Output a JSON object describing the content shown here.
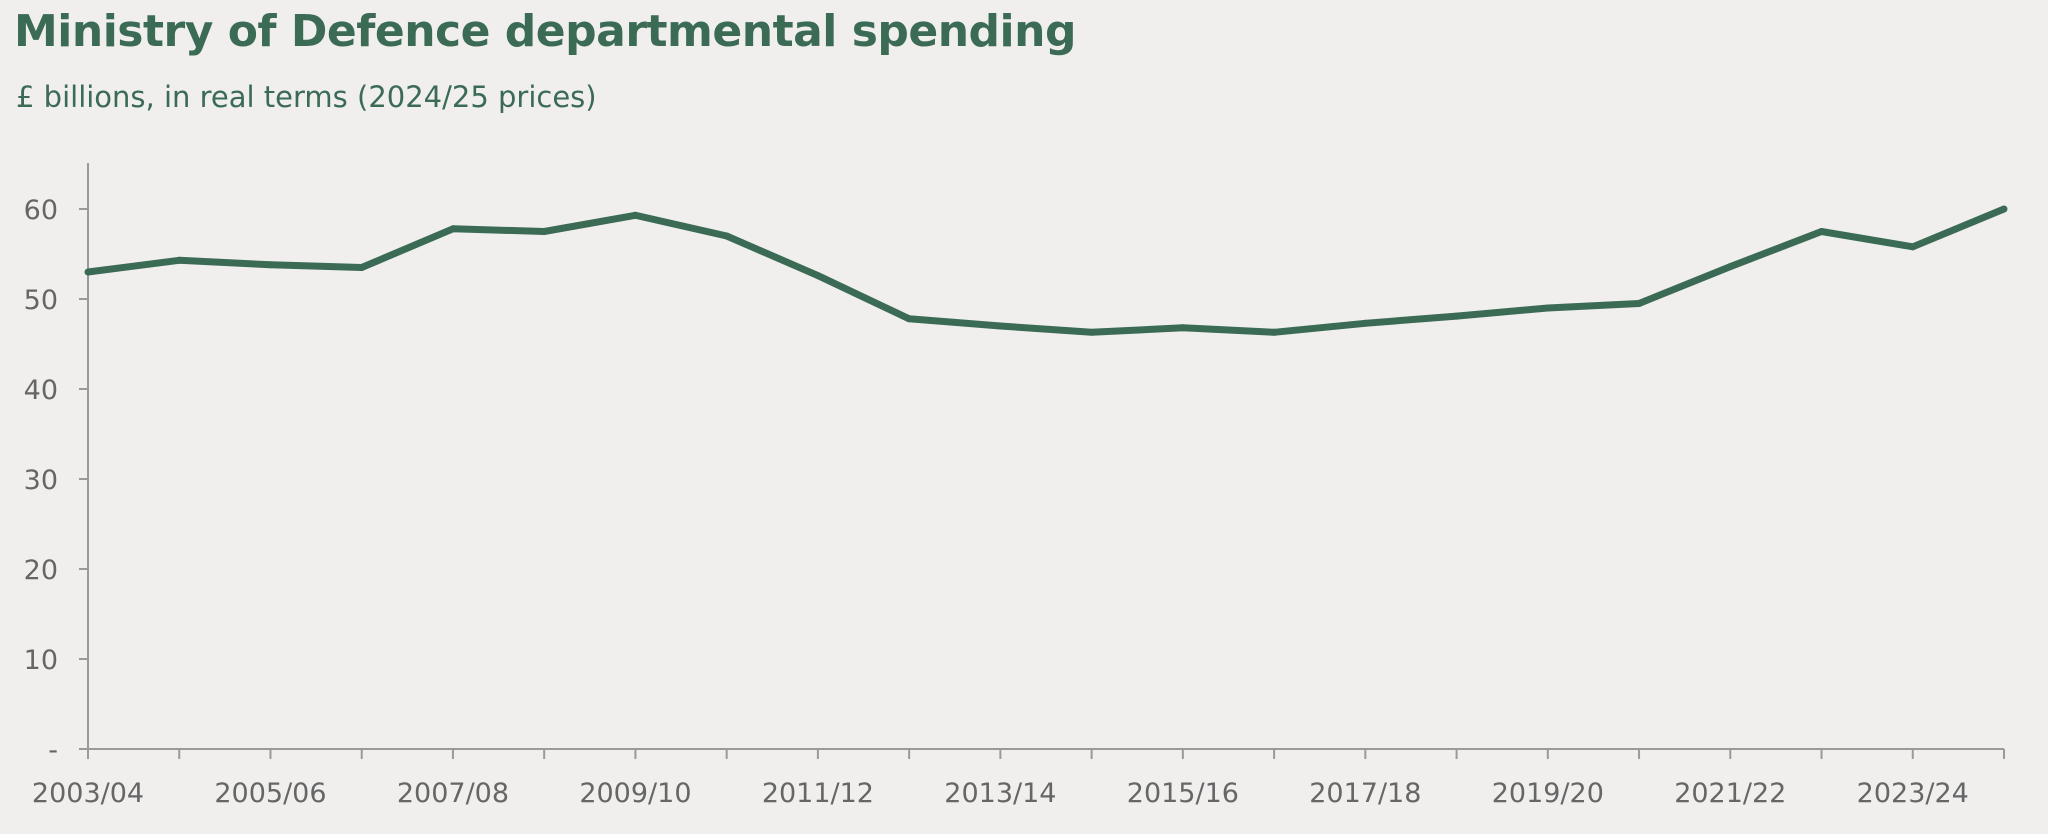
{
  "colors": {
    "background": "#f0efee",
    "title": "#3b6b55",
    "line": "#3b6b55",
    "axis": "#9a9a9a",
    "tick_text": "#666666"
  },
  "chart_data": {
    "type": "line",
    "title": "Ministry of Defence departmental spending",
    "subtitle": "£ billions, in real terms (2024/25 prices)",
    "xlabel": "",
    "ylabel": "",
    "ylim": [
      0,
      65
    ],
    "yticks": [
      {
        "value": 0,
        "label": "-"
      },
      {
        "value": 10,
        "label": "10"
      },
      {
        "value": 20,
        "label": "20"
      },
      {
        "value": 30,
        "label": "30"
      },
      {
        "value": 40,
        "label": "40"
      },
      {
        "value": 50,
        "label": "50"
      },
      {
        "value": 60,
        "label": "60"
      }
    ],
    "grid": false,
    "legend": "none",
    "categories": [
      "2003/04",
      "2004/05",
      "2005/06",
      "2006/07",
      "2007/08",
      "2008/09",
      "2009/10",
      "2010/11",
      "2011/12",
      "2012/13",
      "2013/14",
      "2014/15",
      "2015/16",
      "2016/17",
      "2017/18",
      "2018/19",
      "2019/20",
      "2020/21",
      "2021/22",
      "2022/23",
      "2023/24",
      "2024/25"
    ],
    "x_labels_shown": [
      "2003/04",
      "2005/06",
      "2007/08",
      "2009/10",
      "2011/12",
      "2013/14",
      "2015/16",
      "2017/18",
      "2019/20",
      "2021/22",
      "2023/24"
    ],
    "series": [
      {
        "name": "MoD departmental spending",
        "values": [
          53.0,
          54.3,
          53.8,
          53.5,
          57.8,
          57.5,
          59.3,
          57.0,
          52.6,
          47.8,
          47.0,
          46.3,
          46.8,
          46.3,
          47.3,
          48.1,
          49.0,
          49.5,
          53.6,
          57.5,
          55.8,
          60.0
        ]
      }
    ]
  }
}
